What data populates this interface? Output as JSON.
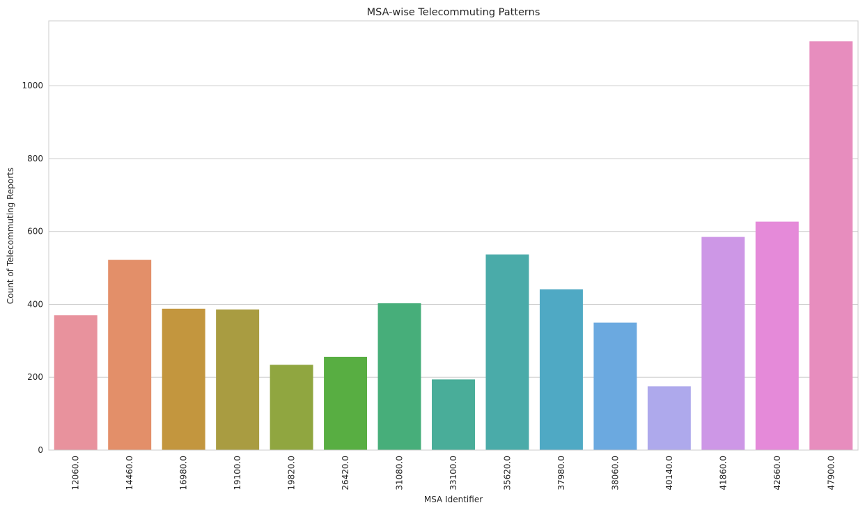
{
  "chart_data": {
    "type": "bar",
    "title": "MSA-wise Telecommuting Patterns",
    "xlabel": "MSA Identifier",
    "ylabel": "Count of Telecommuting Reports",
    "categories": [
      "12060.0",
      "14460.0",
      "16980.0",
      "19100.0",
      "19820.0",
      "26420.0",
      "31080.0",
      "33100.0",
      "35620.0",
      "37980.0",
      "38060.0",
      "40140.0",
      "41860.0",
      "42660.0",
      "47900.0"
    ],
    "values": [
      370,
      522,
      388,
      386,
      234,
      256,
      403,
      194,
      537,
      441,
      350,
      175,
      585,
      627,
      1122
    ],
    "colors": [
      "#e8929d",
      "#e38f69",
      "#c3963e",
      "#a99c41",
      "#90a640",
      "#58ae42",
      "#47ae7a",
      "#49ad99",
      "#4aaba9",
      "#4fa9c4",
      "#6ba9e0",
      "#aea9ec",
      "#cd97e6",
      "#e58ad9",
      "#e78dbe"
    ],
    "ylim": [
      0,
      1178
    ],
    "yticks": [
      0,
      200,
      400,
      600,
      800,
      1000
    ],
    "grid": "horizontal",
    "legend": "none"
  }
}
